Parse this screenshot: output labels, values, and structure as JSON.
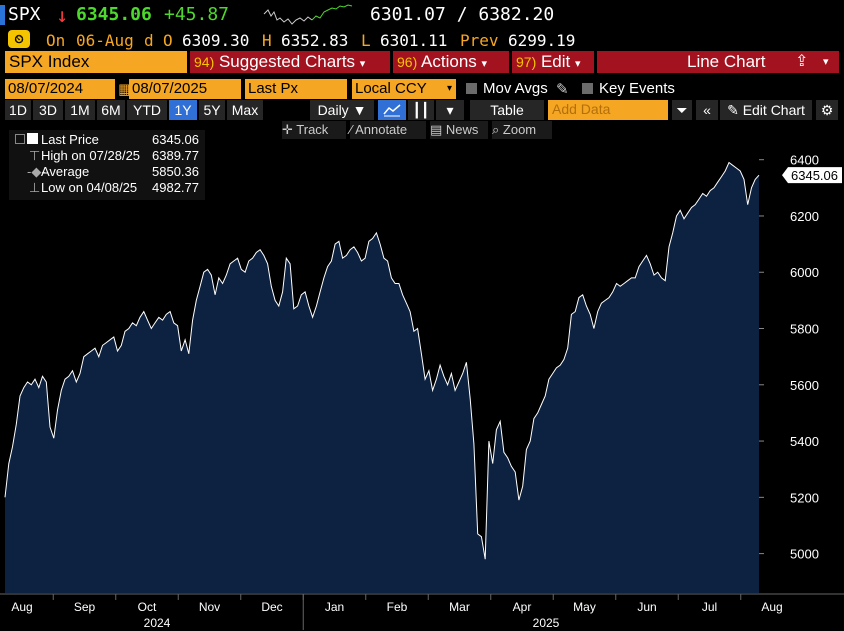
{
  "header": {
    "ticker": "SPX",
    "arrow": "↓",
    "last": "6345.06",
    "change": "+45.87",
    "range": "6301.07 / 6382.20"
  },
  "quote": {
    "on_label": "On",
    "date": "06-Aug",
    "d": "d",
    "o_label": "O",
    "open": "6309.30",
    "h_label": "H",
    "high": "6352.83",
    "l_label": "L",
    "low": "6301.11",
    "prev_label": "Prev",
    "prev": "6299.19"
  },
  "menu": {
    "security": "SPX Index",
    "suggested_num": "94)",
    "suggested": "Suggested Charts",
    "actions_num": "96)",
    "actions": "Actions",
    "edit_num": "97)",
    "edit": "Edit",
    "chart_type": "Line Chart"
  },
  "params": {
    "start": "08/07/2024",
    "dash": "-",
    "end": "08/07/2025",
    "field": "Last Px",
    "currency": "Local CCY",
    "mov_avgs": "Mov Avgs",
    "key_events": "Key Events"
  },
  "toolbar": {
    "periods": [
      "1D",
      "3D",
      "1M",
      "6M",
      "YTD",
      "1Y",
      "5Y",
      "Max"
    ],
    "selected": "1Y",
    "frequency": "Daily ▼",
    "table": "Table",
    "add_data_placeholder": "Add Data",
    "edit_chart": "Edit Chart"
  },
  "tools": {
    "track": "Track",
    "annotate": "Annotate",
    "news": "News",
    "zoom": "Zoom"
  },
  "legend": [
    {
      "name": "Last Price",
      "value": "6345.06"
    },
    {
      "name": "High on 07/28/25",
      "value": "6389.77"
    },
    {
      "name": "Average",
      "value": "5850.36"
    },
    {
      "name": "Low on 04/08/25",
      "value": "4982.77"
    }
  ],
  "colors": {
    "accent": "#f5a623",
    "menu_red": "#a3121f",
    "up": "#4dd92b",
    "down": "#ff3b3b",
    "area_fill": "#0d2140",
    "selected": "#2f6fd6"
  },
  "chart_data": {
    "type": "area",
    "title": "",
    "xlabel": "",
    "ylabel": "",
    "ylim": [
      4860,
      6470
    ],
    "y_ticks": [
      5000,
      5200,
      5400,
      5600,
      5800,
      6000,
      6200,
      6400
    ],
    "x_tick_labels": [
      "Aug",
      "Sep",
      "Oct",
      "Nov",
      "Dec",
      "Jan",
      "Feb",
      "Mar",
      "Apr",
      "May",
      "Jun",
      "Jul",
      "Aug"
    ],
    "year_labels": [
      "2024",
      "2025"
    ],
    "last_value_label": "6345.06",
    "grid": false,
    "series": [
      {
        "values": [
          5200,
          5320,
          5380,
          5460,
          5560,
          5590,
          5610,
          5600,
          5620,
          5590,
          5630,
          5610,
          5450,
          5410,
          5510,
          5580,
          5620,
          5630,
          5650,
          5610,
          5640,
          5700,
          5710,
          5720,
          5730,
          5700,
          5740,
          5750,
          5760,
          5770,
          5720,
          5740,
          5790,
          5800,
          5820,
          5810,
          5840,
          5860,
          5830,
          5800,
          5820,
          5840,
          5830,
          5850,
          5860,
          5820,
          5810,
          5720,
          5760,
          5710,
          5830,
          5900,
          5950,
          6000,
          6010,
          5990,
          5920,
          5980,
          5960,
          5990,
          6030,
          6040,
          6050,
          6010,
          6000,
          6040,
          6050,
          6070,
          6080,
          6060,
          6030,
          5950,
          5900,
          5880,
          5930,
          6050,
          6030,
          5870,
          5880,
          5920,
          5930,
          5880,
          5840,
          5880,
          5930,
          5980,
          6020,
          6040,
          6100,
          6110,
          6050,
          6060,
          6080,
          6090,
          6070,
          6040,
          6050,
          6110,
          6120,
          6140,
          6100,
          6050,
          6040,
          5980,
          5960,
          5960,
          5920,
          5890,
          5860,
          5790,
          5800,
          5710,
          5620,
          5650,
          5580,
          5620,
          5670,
          5630,
          5600,
          5640,
          5580,
          5610,
          5640,
          5680,
          5550,
          5390,
          5070,
          5060,
          4980,
          5400,
          5320,
          5440,
          5470,
          5360,
          5340,
          5310,
          5290,
          5190,
          5240,
          5370,
          5400,
          5480,
          5500,
          5530,
          5560,
          5620,
          5640,
          5660,
          5670,
          5690,
          5730,
          5850,
          5860,
          5910,
          5920,
          5880,
          5850,
          5800,
          5860,
          5890,
          5900,
          5910,
          5930,
          5960,
          5950,
          5960,
          5970,
          5980,
          5980,
          6020,
          6040,
          6060,
          6030,
          5990,
          6000,
          5980,
          5970,
          6090,
          6140,
          6200,
          6220,
          6190,
          6210,
          6230,
          6240,
          6260,
          6280,
          6270,
          6290,
          6300,
          6320,
          6340,
          6360,
          6390,
          6380,
          6370,
          6360,
          6330,
          6240,
          6300,
          6330,
          6345
        ]
      }
    ]
  }
}
